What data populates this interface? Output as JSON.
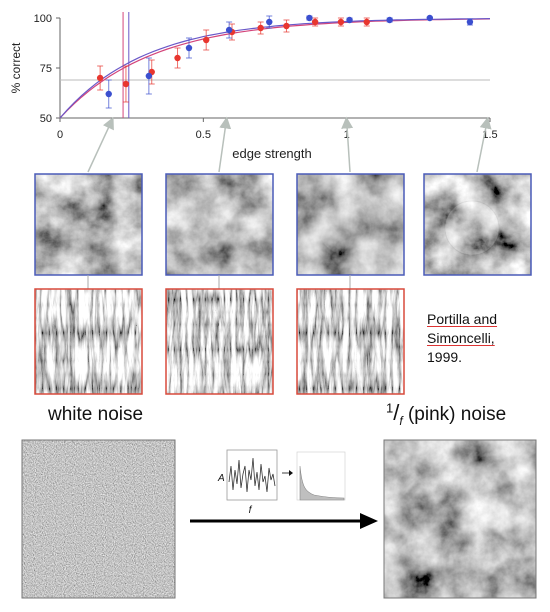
{
  "chart_data": {
    "type": "scatter",
    "title": "",
    "xlabel": "edge strength",
    "ylabel": "% correct",
    "xlim": [
      0,
      1.5
    ],
    "ylim": [
      50,
      100
    ],
    "x_ticks": [
      0,
      0.5,
      1,
      1.5
    ],
    "x_tick_labels": [
      "0",
      "0.5",
      "1",
      "1.5"
    ],
    "y_ticks": [
      50,
      75,
      100
    ],
    "y_tick_labels": [
      "50",
      "75",
      "100"
    ],
    "chance_line_y": 69,
    "threshold_lines_x": [
      0.22,
      0.24
    ],
    "series": [
      {
        "color": "#e8362f",
        "points": [
          {
            "x": 0.14,
            "y": 70,
            "err": 6
          },
          {
            "x": 0.23,
            "y": 67,
            "err": 9
          },
          {
            "x": 0.32,
            "y": 73,
            "err": 6
          },
          {
            "x": 0.41,
            "y": 80,
            "err": 5
          },
          {
            "x": 0.51,
            "y": 89,
            "err": 5
          },
          {
            "x": 0.6,
            "y": 93,
            "err": 4
          },
          {
            "x": 0.7,
            "y": 95,
            "err": 3
          },
          {
            "x": 0.79,
            "y": 96,
            "err": 3
          },
          {
            "x": 0.89,
            "y": 98,
            "err": 2
          },
          {
            "x": 0.98,
            "y": 98,
            "err": 2
          },
          {
            "x": 1.07,
            "y": 98,
            "err": 2
          }
        ]
      },
      {
        "color": "#3b4fcf",
        "points": [
          {
            "x": 0.17,
            "y": 62,
            "err": 7
          },
          {
            "x": 0.31,
            "y": 71,
            "err": 9
          },
          {
            "x": 0.45,
            "y": 85,
            "err": 5
          },
          {
            "x": 0.59,
            "y": 94,
            "err": 4
          },
          {
            "x": 0.73,
            "y": 98,
            "err": 3
          },
          {
            "x": 0.87,
            "y": 100,
            "err": 1
          },
          {
            "x": 1.01,
            "y": 99,
            "err": 1
          },
          {
            "x": 1.15,
            "y": 99,
            "err": 1
          },
          {
            "x": 1.29,
            "y": 100,
            "err": 0.5
          },
          {
            "x": 1.43,
            "y": 98,
            "err": 1.5
          }
        ]
      }
    ],
    "fits": [
      {
        "color": "#d4447a",
        "slope": 5.2
      },
      {
        "color": "#6a58c8",
        "slope": 5.6
      }
    ]
  },
  "texture_columns_x": [
    0.18,
    0.58,
    1.0,
    1.49
  ],
  "illustration": {
    "white_noise_label": "white noise",
    "pink_noise_sup": "1",
    "pink_noise_sub": "f",
    "pink_noise_label": "(pink) noise",
    "axis_amplitude": "A",
    "axis_frequency": "f"
  },
  "citation": {
    "line1": "Portilla and",
    "line2": "Simoncelli,",
    "line3": "1999."
  }
}
